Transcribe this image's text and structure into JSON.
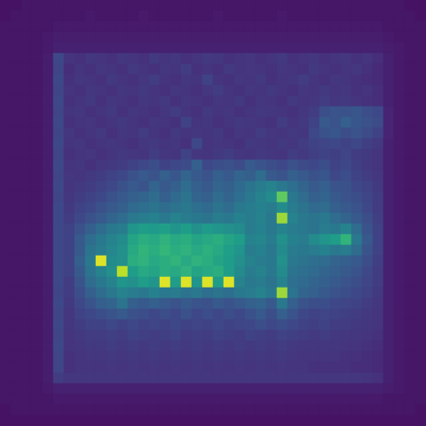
{
  "chart_data": {
    "type": "heatmap",
    "tick_labels": false,
    "zlim": [
      0,
      100
    ],
    "cells": [
      [
        5,
        5,
        6,
        6,
        6,
        6,
        6,
        6,
        6,
        6,
        6,
        6,
        6,
        6,
        6,
        6,
        6,
        6,
        6,
        6,
        6,
        6,
        6,
        6,
        6,
        6,
        6,
        6,
        6,
        6,
        6,
        6,
        6,
        6,
        6,
        6,
        6,
        6,
        5,
        5
      ],
      [
        5,
        6,
        6,
        6,
        6,
        6,
        6,
        6,
        7,
        6,
        6,
        6,
        6,
        7,
        6,
        6,
        6,
        6,
        6,
        6,
        7,
        6,
        6,
        6,
        6,
        6,
        7,
        6,
        6,
        6,
        6,
        6,
        6,
        6,
        6,
        6,
        6,
        6,
        6,
        5
      ],
      [
        6,
        6,
        6,
        6,
        6,
        7,
        7,
        7,
        7,
        7,
        7,
        7,
        7,
        7,
        7,
        7,
        7,
        7,
        7,
        7,
        7,
        7,
        7,
        7,
        7,
        7,
        7,
        7,
        7,
        7,
        7,
        7,
        7,
        7,
        7,
        7,
        6,
        6,
        6,
        6
      ],
      [
        6,
        6,
        6,
        6,
        7,
        8,
        8,
        8,
        8,
        8,
        8,
        8,
        8,
        8,
        8,
        8,
        8,
        8,
        8,
        8,
        8,
        8,
        8,
        8,
        8,
        8,
        8,
        8,
        8,
        8,
        8,
        8,
        8,
        8,
        8,
        8,
        7,
        6,
        6,
        6
      ],
      [
        6,
        6,
        6,
        6,
        7,
        9,
        9,
        9,
        9,
        9,
        9,
        9,
        9,
        9,
        9,
        9,
        9,
        9,
        9,
        9,
        9,
        9,
        9,
        9,
        9,
        9,
        9,
        9,
        9,
        9,
        9,
        9,
        9,
        9,
        9,
        9,
        8,
        7,
        6,
        6
      ],
      [
        6,
        6,
        6,
        6,
        8,
        22,
        15,
        14,
        16,
        15,
        14,
        16,
        15,
        14,
        17,
        15,
        16,
        14,
        15,
        17,
        16,
        14,
        15,
        16,
        14,
        15,
        17,
        14,
        15,
        16,
        14,
        15,
        16,
        14,
        15,
        13,
        9,
        7,
        6,
        6
      ],
      [
        6,
        6,
        6,
        6,
        8,
        21,
        13,
        15,
        14,
        16,
        15,
        14,
        17,
        15,
        14,
        16,
        15,
        18,
        14,
        15,
        14,
        17,
        15,
        16,
        15,
        14,
        16,
        15,
        14,
        17,
        15,
        14,
        15,
        16,
        14,
        12,
        9,
        7,
        6,
        6
      ],
      [
        6,
        6,
        6,
        6,
        8,
        22,
        14,
        16,
        15,
        14,
        17,
        15,
        14,
        16,
        18,
        15,
        14,
        16,
        15,
        20,
        15,
        14,
        16,
        15,
        17,
        14,
        15,
        16,
        18,
        15,
        14,
        16,
        15,
        14,
        13,
        12,
        9,
        7,
        6,
        6
      ],
      [
        6,
        6,
        6,
        6,
        8,
        21,
        15,
        14,
        16,
        15,
        14,
        16,
        15,
        17,
        15,
        14,
        16,
        15,
        14,
        16,
        18,
        15,
        14,
        16,
        15,
        17,
        15,
        14,
        16,
        15,
        17,
        15,
        16,
        14,
        15,
        13,
        9,
        7,
        6,
        6
      ],
      [
        6,
        6,
        6,
        6,
        8,
        22,
        14,
        15,
        17,
        14,
        16,
        15,
        14,
        16,
        15,
        17,
        14,
        16,
        15,
        14,
        16,
        15,
        17,
        14,
        16,
        15,
        14,
        17,
        15,
        16,
        18,
        16,
        17,
        15,
        14,
        13,
        9,
        7,
        6,
        6
      ],
      [
        6,
        6,
        6,
        6,
        8,
        21,
        15,
        16,
        14,
        15,
        17,
        14,
        16,
        15,
        14,
        16,
        18,
        15,
        14,
        17,
        15,
        16,
        14,
        15,
        17,
        16,
        15,
        14,
        16,
        18,
        24,
        26,
        25,
        27,
        24,
        22,
        10,
        7,
        6,
        6
      ],
      [
        6,
        6,
        6,
        6,
        8,
        22,
        14,
        15,
        16,
        14,
        15,
        17,
        15,
        14,
        16,
        15,
        14,
        20,
        15,
        16,
        14,
        15,
        17,
        16,
        15,
        14,
        18,
        15,
        17,
        20,
        28,
        26,
        30,
        27,
        25,
        23,
        10,
        7,
        6,
        6
      ],
      [
        6,
        6,
        6,
        6,
        8,
        21,
        16,
        14,
        15,
        17,
        14,
        16,
        15,
        18,
        15,
        14,
        17,
        15,
        16,
        15,
        17,
        14,
        16,
        15,
        18,
        16,
        15,
        17,
        16,
        22,
        25,
        27,
        24,
        26,
        23,
        20,
        10,
        7,
        6,
        6
      ],
      [
        6,
        6,
        6,
        6,
        8,
        22,
        15,
        16,
        14,
        15,
        16,
        15,
        14,
        16,
        17,
        15,
        16,
        14,
        22,
        15,
        16,
        15,
        14,
        17,
        16,
        15,
        17,
        16,
        18,
        20,
        21,
        22,
        20,
        22,
        19,
        17,
        9,
        7,
        6,
        6
      ],
      [
        6,
        6,
        6,
        6,
        8,
        21,
        14,
        15,
        16,
        14,
        15,
        17,
        16,
        15,
        18,
        16,
        15,
        20,
        16,
        15,
        17,
        18,
        16,
        15,
        17,
        16,
        15,
        18,
        17,
        19,
        20,
        19,
        21,
        18,
        17,
        15,
        9,
        7,
        6,
        6
      ],
      [
        6,
        6,
        6,
        6,
        8,
        22,
        15,
        16,
        14,
        16,
        17,
        18,
        20,
        22,
        24,
        20,
        22,
        23,
        30,
        22,
        24,
        25,
        23,
        28,
        26,
        24,
        22,
        25,
        23,
        22,
        24,
        20,
        22,
        19,
        17,
        15,
        9,
        7,
        6,
        6
      ],
      [
        6,
        6,
        6,
        6,
        8,
        21,
        16,
        15,
        17,
        18,
        20,
        22,
        25,
        28,
        26,
        30,
        27,
        32,
        28,
        26,
        30,
        28,
        32,
        30,
        35,
        28,
        26,
        30,
        28,
        25,
        27,
        22,
        24,
        20,
        18,
        16,
        9,
        7,
        6,
        6
      ],
      [
        6,
        6,
        6,
        6,
        8,
        22,
        15,
        17,
        18,
        20,
        22,
        25,
        28,
        26,
        32,
        28,
        30,
        35,
        30,
        28,
        32,
        30,
        34,
        38,
        42,
        45,
        40,
        36,
        32,
        28,
        30,
        26,
        25,
        22,
        20,
        17,
        9,
        7,
        6,
        6
      ],
      [
        6,
        6,
        6,
        6,
        8,
        21,
        16,
        18,
        20,
        22,
        25,
        28,
        30,
        32,
        35,
        30,
        34,
        38,
        32,
        30,
        35,
        32,
        36,
        40,
        45,
        48,
        75,
        40,
        35,
        30,
        32,
        28,
        26,
        24,
        21,
        18,
        9,
        7,
        6,
        6
      ],
      [
        6,
        6,
        6,
        6,
        8,
        22,
        17,
        20,
        22,
        25,
        28,
        30,
        34,
        36,
        38,
        35,
        38,
        40,
        36,
        34,
        38,
        35,
        40,
        42,
        44,
        42,
        48,
        42,
        38,
        34,
        35,
        30,
        28,
        26,
        22,
        18,
        9,
        7,
        6,
        6
      ],
      [
        6,
        6,
        6,
        6,
        8,
        22,
        18,
        22,
        25,
        28,
        32,
        35,
        40,
        42,
        44,
        40,
        45,
        42,
        40,
        38,
        42,
        40,
        44,
        42,
        45,
        40,
        85,
        45,
        40,
        38,
        40,
        35,
        32,
        28,
        24,
        19,
        9,
        7,
        6,
        6
      ],
      [
        6,
        6,
        6,
        6,
        8,
        22,
        20,
        25,
        30,
        35,
        40,
        42,
        52,
        55,
        54,
        56,
        52,
        55,
        50,
        54,
        52,
        50,
        48,
        42,
        44,
        40,
        45,
        42,
        40,
        38,
        42,
        40,
        45,
        35,
        26,
        20,
        9,
        7,
        6,
        6
      ],
      [
        6,
        6,
        6,
        6,
        8,
        22,
        20,
        28,
        35,
        40,
        45,
        48,
        58,
        62,
        60,
        64,
        60,
        62,
        58,
        60,
        62,
        58,
        55,
        45,
        46,
        42,
        50,
        44,
        42,
        48,
        52,
        55,
        65,
        40,
        28,
        20,
        9,
        7,
        6,
        6
      ],
      [
        6,
        6,
        6,
        6,
        8,
        22,
        20,
        28,
        38,
        42,
        46,
        50,
        60,
        65,
        62,
        66,
        62,
        64,
        60,
        63,
        60,
        56,
        52,
        42,
        44,
        40,
        48,
        42,
        40,
        42,
        44,
        40,
        42,
        35,
        26,
        20,
        9,
        7,
        6,
        6
      ],
      [
        6,
        6,
        6,
        6,
        8,
        22,
        20,
        30,
        40,
        95,
        48,
        50,
        62,
        64,
        60,
        62,
        65,
        60,
        64,
        62,
        58,
        55,
        50,
        45,
        42,
        40,
        50,
        40,
        38,
        36,
        35,
        32,
        30,
        28,
        24,
        19,
        9,
        7,
        6,
        6
      ],
      [
        6,
        6,
        6,
        6,
        8,
        22,
        20,
        28,
        38,
        45,
        50,
        90,
        55,
        60,
        58,
        62,
        60,
        64,
        58,
        60,
        62,
        55,
        48,
        42,
        45,
        40,
        48,
        38,
        36,
        34,
        32,
        30,
        28,
        26,
        22,
        18,
        9,
        7,
        6,
        6
      ],
      [
        6,
        6,
        6,
        6,
        8,
        22,
        18,
        26,
        35,
        40,
        45,
        52,
        50,
        55,
        52,
        95,
        55,
        95,
        52,
        95,
        55,
        95,
        45,
        40,
        42,
        38,
        45,
        36,
        34,
        32,
        30,
        28,
        26,
        24,
        21,
        18,
        9,
        7,
        6,
        6
      ],
      [
        6,
        6,
        6,
        6,
        8,
        21,
        18,
        24,
        30,
        35,
        40,
        45,
        42,
        40,
        44,
        40,
        42,
        38,
        40,
        36,
        38,
        36,
        40,
        42,
        45,
        40,
        85,
        38,
        32,
        30,
        28,
        26,
        24,
        22,
        20,
        17,
        9,
        7,
        6,
        6
      ],
      [
        6,
        6,
        6,
        6,
        8,
        22,
        17,
        22,
        26,
        30,
        32,
        38,
        30,
        28,
        30,
        28,
        26,
        28,
        26,
        25,
        28,
        26,
        28,
        30,
        32,
        28,
        40,
        30,
        26,
        24,
        24,
        22,
        21,
        20,
        18,
        16,
        9,
        7,
        6,
        6
      ],
      [
        6,
        6,
        6,
        6,
        8,
        21,
        16,
        20,
        22,
        24,
        26,
        28,
        25,
        24,
        22,
        24,
        22,
        25,
        22,
        24,
        22,
        24,
        22,
        25,
        28,
        24,
        30,
        26,
        22,
        20,
        21,
        20,
        19,
        18,
        17,
        15,
        9,
        7,
        6,
        6
      ],
      [
        6,
        6,
        6,
        6,
        8,
        22,
        16,
        18,
        20,
        20,
        22,
        20,
        22,
        20,
        21,
        20,
        22,
        20,
        21,
        20,
        22,
        20,
        21,
        22,
        24,
        22,
        24,
        22,
        20,
        19,
        20,
        18,
        18,
        17,
        16,
        15,
        9,
        7,
        6,
        6
      ],
      [
        6,
        6,
        6,
        6,
        8,
        21,
        15,
        17,
        18,
        18,
        19,
        18,
        20,
        19,
        18,
        19,
        20,
        18,
        19,
        18,
        20,
        19,
        18,
        20,
        19,
        18,
        20,
        19,
        18,
        17,
        18,
        17,
        16,
        16,
        15,
        14,
        9,
        7,
        6,
        6
      ],
      [
        6,
        6,
        6,
        6,
        8,
        22,
        15,
        16,
        17,
        17,
        18,
        17,
        18,
        17,
        18,
        17,
        18,
        17,
        18,
        17,
        18,
        17,
        18,
        17,
        18,
        17,
        18,
        17,
        16,
        16,
        16,
        16,
        15,
        15,
        14,
        13,
        9,
        7,
        6,
        6
      ],
      [
        6,
        6,
        6,
        6,
        8,
        21,
        14,
        15,
        16,
        16,
        17,
        16,
        17,
        16,
        17,
        16,
        17,
        16,
        17,
        16,
        17,
        16,
        17,
        16,
        17,
        16,
        17,
        16,
        15,
        15,
        15,
        15,
        14,
        14,
        13,
        12,
        9,
        7,
        6,
        6
      ],
      [
        6,
        6,
        6,
        6,
        8,
        21,
        14,
        15,
        15,
        15,
        16,
        15,
        16,
        15,
        16,
        15,
        16,
        15,
        16,
        15,
        16,
        15,
        16,
        15,
        16,
        15,
        16,
        15,
        15,
        14,
        14,
        14,
        14,
        13,
        13,
        12,
        9,
        7,
        6,
        6
      ],
      [
        6,
        6,
        6,
        6,
        8,
        18,
        16,
        16,
        16,
        16,
        16,
        16,
        16,
        16,
        16,
        16,
        16,
        16,
        16,
        16,
        16,
        16,
        16,
        16,
        16,
        16,
        16,
        16,
        16,
        16,
        16,
        16,
        16,
        16,
        15,
        14,
        9,
        7,
        6,
        6
      ],
      [
        6,
        6,
        6,
        6,
        7,
        9,
        9,
        9,
        9,
        9,
        9,
        9,
        9,
        9,
        9,
        9,
        9,
        9,
        9,
        9,
        9,
        9,
        9,
        9,
        9,
        9,
        9,
        9,
        9,
        9,
        9,
        9,
        9,
        9,
        9,
        9,
        8,
        7,
        6,
        6
      ],
      [
        6,
        6,
        6,
        6,
        6,
        7,
        7,
        7,
        7,
        7,
        7,
        7,
        7,
        7,
        7,
        7,
        7,
        7,
        7,
        7,
        7,
        7,
        7,
        7,
        7,
        7,
        7,
        7,
        7,
        7,
        7,
        7,
        7,
        7,
        7,
        7,
        6,
        6,
        6,
        6
      ],
      [
        5,
        6,
        6,
        6,
        6,
        6,
        6,
        6,
        6,
        6,
        6,
        6,
        6,
        6,
        6,
        6,
        6,
        6,
        6,
        6,
        6,
        6,
        6,
        6,
        6,
        6,
        6,
        6,
        6,
        6,
        6,
        6,
        6,
        6,
        6,
        6,
        6,
        6,
        6,
        5
      ],
      [
        5,
        5,
        5,
        5,
        5,
        5,
        5,
        5,
        5,
        5,
        5,
        5,
        5,
        5,
        5,
        5,
        5,
        5,
        5,
        5,
        5,
        5,
        5,
        5,
        5,
        5,
        5,
        5,
        5,
        5,
        5,
        5,
        5,
        5,
        5,
        5,
        5,
        5,
        5,
        5
      ]
    ]
  }
}
